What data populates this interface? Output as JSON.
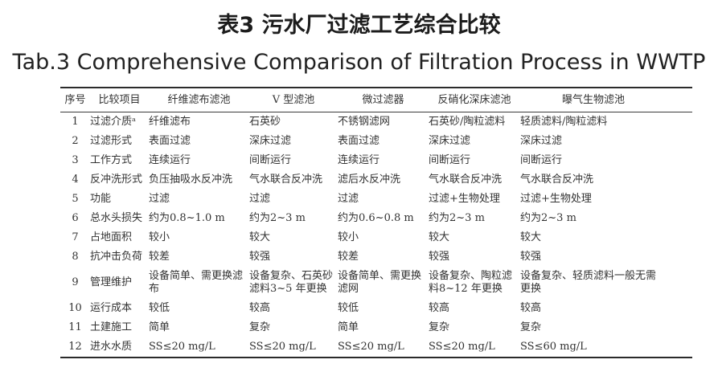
{
  "title_cn": "表3 污水厂过滤工艺综合比较",
  "title_en": "Tab.3 Comprehensive Comparison of Filtration Process in WWTP",
  "colors": {
    "background": "#ffffff",
    "text": "#333333",
    "rule": "#2b2b2b"
  },
  "table": {
    "headers": [
      "序号",
      "比较项目",
      "纤维滤布滤池",
      "V 型滤池",
      "微过滤器",
      "反硝化深床滤池",
      "曝气生物滤池"
    ],
    "rows": [
      [
        "1",
        "过滤介质ᵃ",
        "纤维滤布",
        "石英砂",
        "不锈钢滤网",
        "石英砂/陶粒滤料",
        "轻质滤料/陶粒滤料"
      ],
      [
        "2",
        "过滤形式",
        "表面过滤",
        "深床过滤",
        "表面过滤",
        "深床过滤",
        "深床过滤"
      ],
      [
        "3",
        "工作方式",
        "连续运行",
        "间断运行",
        "连续运行",
        "间断运行",
        "间断运行"
      ],
      [
        "4",
        "反冲洗形式",
        "负压抽吸水反冲洗",
        "气水联合反冲洗",
        "滤后水反冲洗",
        "气水联合反冲洗",
        "气水联合反冲洗"
      ],
      [
        "5",
        "功能",
        "过滤",
        "过滤",
        "过滤",
        "过滤+生物处理",
        "过滤+生物处理"
      ],
      [
        "6",
        "总水头损失",
        "约为0.8~1.0 m",
        "约为2~3 m",
        "约为0.6~0.8 m",
        "约为2~3 m",
        "约为2~3 m"
      ],
      [
        "7",
        "占地面积",
        "较小",
        "较大",
        "较小",
        "较大",
        "较大"
      ],
      [
        "8",
        "抗冲击负荷",
        "较差",
        "较强",
        "较差",
        "较强",
        "较强"
      ],
      [
        "9",
        "管理维护",
        "设备简单、需更换滤布",
        "设备复杂、石英砂滤料3~5 年更换",
        "设备简单、需更换滤网",
        "设备复杂、陶粒滤料8~12 年更换",
        "设备复杂、轻质滤料一般无需更换"
      ],
      [
        "10",
        "运行成本",
        "较低",
        "较高",
        "较低",
        "较高",
        "较高"
      ],
      [
        "11",
        "土建施工",
        "简单",
        "复杂",
        "简单",
        "复杂",
        "复杂"
      ],
      [
        "12",
        "进水水质",
        "SS≤20 mg/L",
        "SS≤20 mg/L",
        "SS≤20 mg/L",
        "SS≤20 mg/L",
        "SS≤60 mg/L"
      ]
    ]
  }
}
